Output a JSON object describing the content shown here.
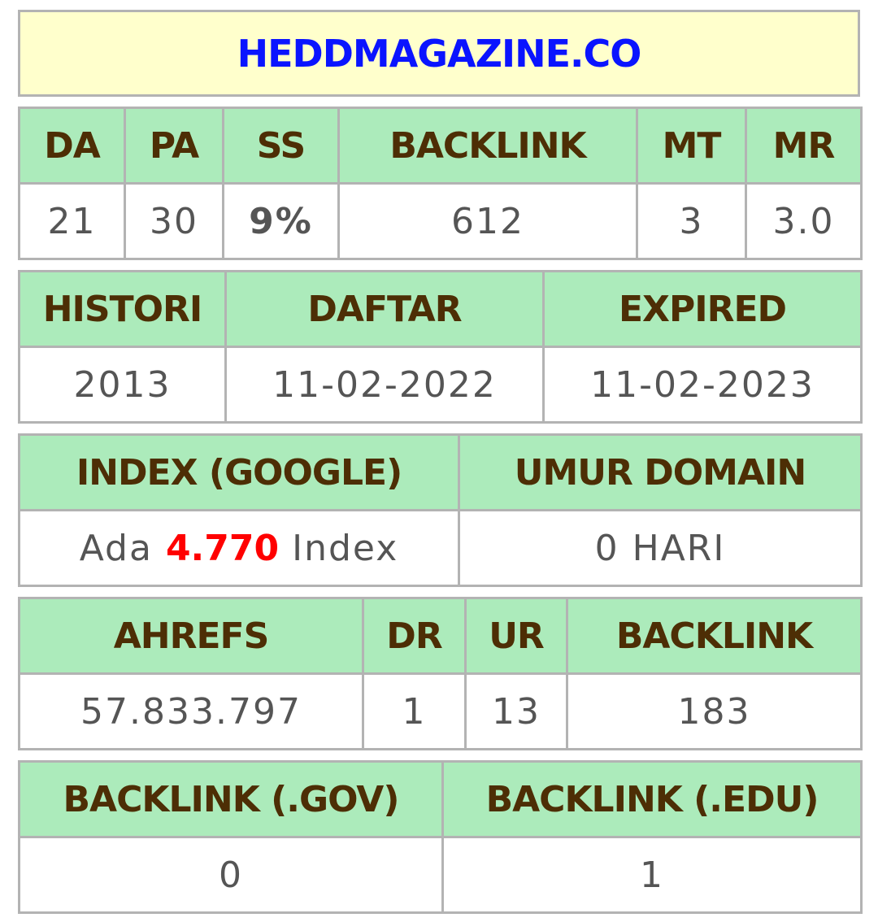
{
  "title": "HEDDMAGAZINE.CO",
  "moz": {
    "headers": [
      "DA",
      "PA",
      "SS",
      "BACKLINK",
      "MT",
      "MR"
    ],
    "da": "21",
    "pa": "30",
    "ss": "9%",
    "backlink": "612",
    "mt": "3",
    "mr": "3.0"
  },
  "history": {
    "headers": [
      "HISTORI",
      "DAFTAR",
      "EXPIRED"
    ],
    "histori": "2013",
    "daftar": "11-02-2022",
    "expired": "11-02-2023"
  },
  "index": {
    "headers": [
      "INDEX (GOOGLE)",
      "UMUR DOMAIN"
    ],
    "prefix": "Ada",
    "count": "4.770",
    "suffix": "Index",
    "umur": "0 HARI"
  },
  "ahrefs": {
    "headers": [
      "AHREFS",
      "DR",
      "UR",
      "BACKLINK"
    ],
    "rank": "57.833.797",
    "dr": "1",
    "ur": "13",
    "backlink": "183"
  },
  "special": {
    "headers": [
      "BACKLINK (.GOV)",
      "BACKLINK (.EDU)"
    ],
    "gov": "0",
    "edu": "1"
  },
  "colors": {
    "header_bg": "#acebbb",
    "header_text": "#4d2e05",
    "title_bg": "#ffffcc",
    "title_text": "#0a14ff",
    "ss_value": "#0a7d0a",
    "index_count": "#ff0000"
  }
}
